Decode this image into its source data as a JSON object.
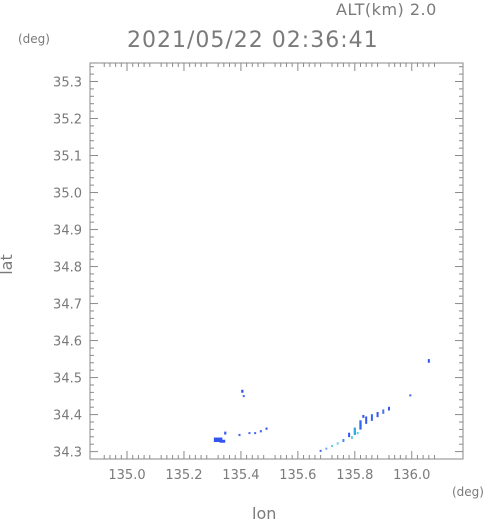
{
  "header": {
    "alt_label": "ALT(km) 2.0",
    "timestamp": "2021/05/22 02:36:41"
  },
  "chart_data": {
    "type": "scatter",
    "xlabel": "lon",
    "ylabel": "lat",
    "x_unit": "(deg)",
    "y_unit": "(deg)",
    "xlim": [
      134.87,
      136.18
    ],
    "ylim": [
      34.28,
      35.35
    ],
    "x_ticks": [
      135.0,
      135.2,
      135.4,
      135.6,
      135.8,
      136.0
    ],
    "x_tick_labels": [
      "135.0",
      "135.2",
      "135.4",
      "135.6",
      "135.8",
      "136.0"
    ],
    "y_ticks": [
      34.3,
      34.4,
      34.5,
      34.6,
      34.7,
      34.8,
      34.9,
      35.0,
      35.1,
      35.2,
      35.3
    ],
    "y_tick_labels": [
      "34.3",
      "34.4",
      "34.5",
      "34.6",
      "34.7",
      "34.8",
      "34.9",
      "35.0",
      "35.1",
      "35.2",
      "35.3"
    ],
    "colors": {
      "axis": "#8a8a8a",
      "text": "#7a7a7a",
      "echo_blue": "#3355ee",
      "echo_cyan": "#33aadd",
      "echo_light": "#66ccee"
    },
    "echoes": [
      {
        "lon": 135.32,
        "lat": 34.332,
        "w": 0.03,
        "h": 0.012,
        "color": "#3355ee"
      },
      {
        "lon": 135.335,
        "lat": 34.328,
        "w": 0.02,
        "h": 0.008,
        "color": "#3355ee"
      },
      {
        "lon": 135.345,
        "lat": 34.35,
        "w": 0.008,
        "h": 0.008,
        "color": "#4466ee"
      },
      {
        "lon": 135.395,
        "lat": 34.345,
        "w": 0.006,
        "h": 0.006,
        "color": "#4466ee"
      },
      {
        "lon": 135.405,
        "lat": 34.463,
        "w": 0.008,
        "h": 0.008,
        "color": "#3355ee"
      },
      {
        "lon": 135.41,
        "lat": 34.45,
        "w": 0.004,
        "h": 0.004,
        "color": "#4466ee"
      },
      {
        "lon": 135.43,
        "lat": 34.35,
        "w": 0.004,
        "h": 0.005,
        "color": "#4466ee"
      },
      {
        "lon": 135.45,
        "lat": 34.35,
        "w": 0.004,
        "h": 0.005,
        "color": "#4466ee"
      },
      {
        "lon": 135.47,
        "lat": 34.355,
        "w": 0.005,
        "h": 0.006,
        "color": "#4466ee"
      },
      {
        "lon": 135.49,
        "lat": 34.362,
        "w": 0.005,
        "h": 0.006,
        "color": "#3355ee"
      },
      {
        "lon": 135.68,
        "lat": 34.302,
        "w": 0.004,
        "h": 0.004,
        "color": "#4466ee"
      },
      {
        "lon": 135.7,
        "lat": 34.308,
        "w": 0.005,
        "h": 0.005,
        "color": "#66aaee"
      },
      {
        "lon": 135.72,
        "lat": 34.315,
        "w": 0.005,
        "h": 0.005,
        "color": "#66ccee"
      },
      {
        "lon": 135.74,
        "lat": 34.322,
        "w": 0.005,
        "h": 0.006,
        "color": "#66ccee"
      },
      {
        "lon": 135.76,
        "lat": 34.33,
        "w": 0.005,
        "h": 0.008,
        "color": "#4488ee"
      },
      {
        "lon": 135.78,
        "lat": 34.345,
        "w": 0.006,
        "h": 0.012,
        "color": "#3355ee"
      },
      {
        "lon": 135.8,
        "lat": 34.355,
        "w": 0.008,
        "h": 0.02,
        "color": "#33aadd"
      },
      {
        "lon": 135.82,
        "lat": 34.372,
        "w": 0.008,
        "h": 0.025,
        "color": "#3366ee"
      },
      {
        "lon": 135.84,
        "lat": 34.385,
        "w": 0.006,
        "h": 0.02,
        "color": "#3355ee"
      },
      {
        "lon": 135.86,
        "lat": 34.392,
        "w": 0.006,
        "h": 0.018,
        "color": "#3366ee"
      },
      {
        "lon": 135.88,
        "lat": 34.4,
        "w": 0.005,
        "h": 0.014,
        "color": "#3355ee"
      },
      {
        "lon": 135.9,
        "lat": 34.408,
        "w": 0.005,
        "h": 0.012,
        "color": "#4477ee"
      },
      {
        "lon": 135.92,
        "lat": 34.416,
        "w": 0.004,
        "h": 0.01,
        "color": "#3355ee"
      },
      {
        "lon": 135.79,
        "lat": 34.338,
        "w": 0.005,
        "h": 0.008,
        "color": "#66ccee"
      },
      {
        "lon": 135.81,
        "lat": 34.35,
        "w": 0.004,
        "h": 0.006,
        "color": "#66ccee"
      },
      {
        "lon": 135.83,
        "lat": 34.395,
        "w": 0.004,
        "h": 0.008,
        "color": "#3355ee"
      },
      {
        "lon": 135.995,
        "lat": 34.452,
        "w": 0.003,
        "h": 0.003,
        "color": "#4466ee"
      },
      {
        "lon": 136.06,
        "lat": 34.545,
        "w": 0.006,
        "h": 0.01,
        "color": "#3355ee"
      }
    ]
  }
}
